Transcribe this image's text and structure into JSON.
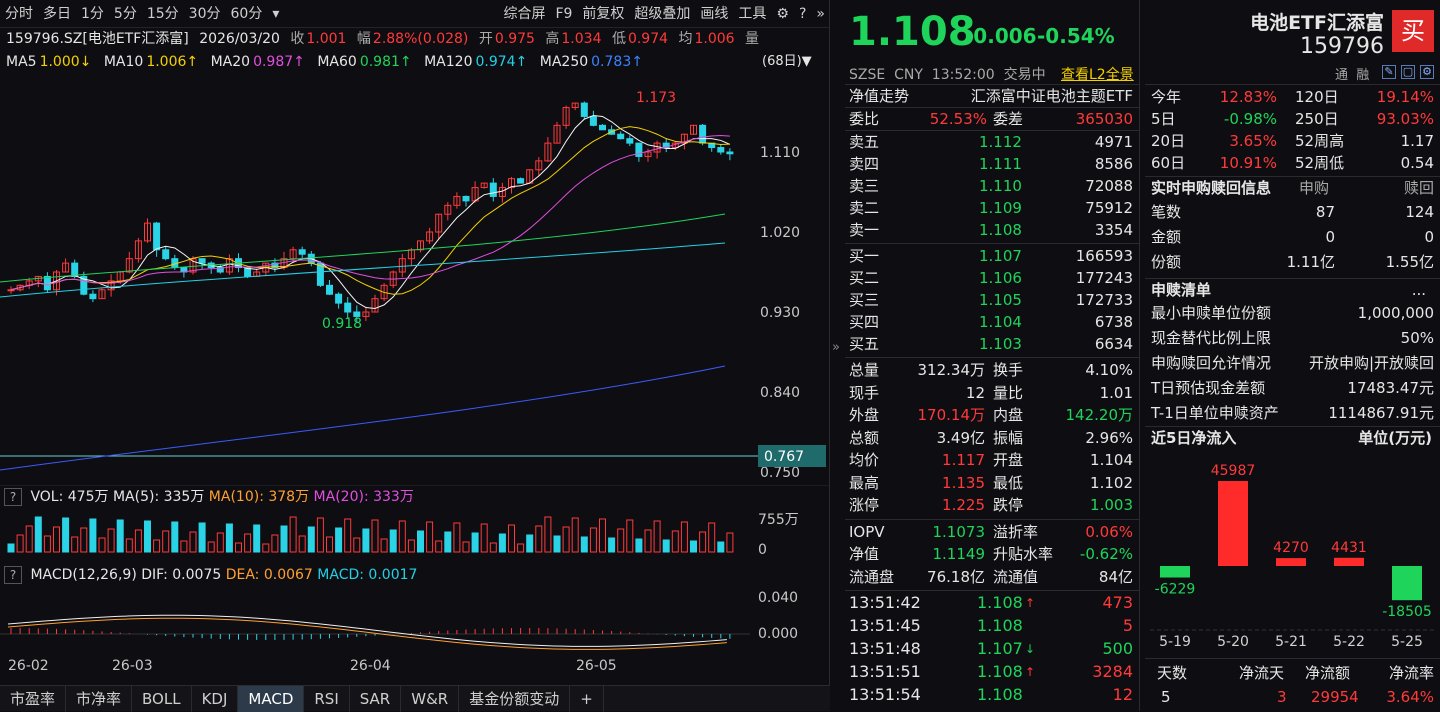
{
  "toolbar": {
    "tabs": [
      "分时",
      "多日",
      "1分",
      "5分",
      "15分",
      "30分",
      "60分",
      "▾"
    ],
    "right": [
      "综合屏",
      "F9",
      "前复权",
      "超级叠加",
      "画线",
      "工具"
    ]
  },
  "quote": {
    "code": "159796.SZ[电池ETF汇添富]",
    "date": "2026/03/20",
    "close_lbl": "收",
    "close": "1.001",
    "chg_lbl": "幅",
    "chg": "2.88%(0.028)",
    "open_lbl": "开",
    "open": "0.975",
    "high_lbl": "高",
    "high": "1.034",
    "low_lbl": "低",
    "low": "0.974",
    "avg_lbl": "均",
    "avg": "1.006",
    "vol_lbl": "量"
  },
  "ma": {
    "ma5": "MA5",
    "ma5v": "1.000↓",
    "ma10": "MA10",
    "ma10v": "1.006↑",
    "ma20": "MA20",
    "ma20v": "0.987↑",
    "ma60": "MA60",
    "ma60v": "0.981↑",
    "ma120": "MA120",
    "ma120v": "0.974↑",
    "ma250": "MA250",
    "ma250v": "0.783↑",
    "period": "(68日)▼"
  },
  "kchart": {
    "yticks": [
      "1.110",
      "1.020",
      "0.930",
      "0.840",
      "0.750"
    ],
    "hi_label": "1.173",
    "lo_label": "0.918",
    "price_tag": "0.767"
  },
  "vol": {
    "label": "VOL: 475万",
    "ma5": "MA(5): 335万",
    "ma10": "MA(10): 378万",
    "ma20": "MA(20): 333万",
    "ymax": "755万",
    "y0": "0"
  },
  "macd": {
    "label": "MACD(12,26,9)",
    "dif": "DIF: 0.0075",
    "dea": "DEA: 0.0067",
    "macd": "MACD: 0.0017",
    "y1": "0.040",
    "y0": "0.000"
  },
  "dates": [
    "26-02",
    "26-03",
    "26-04",
    "26-05"
  ],
  "bottom_tabs": [
    "市盈率",
    "市净率",
    "BOLL",
    "KDJ",
    "MACD",
    "RSI",
    "SAR",
    "W&R",
    "基金份额变动",
    "+"
  ],
  "mid": {
    "price": "1.108",
    "chg": "-0.006",
    "pct": "-0.54%",
    "market": "SZSE  CNY  13:52:00  交易中",
    "l2": "查看L2全景",
    "nav_lbl": "净值走势",
    "nav_name": "汇添富中证电池主题ETF",
    "wb_lbl": "委比",
    "wb": "52.53%",
    "wc_lbl": "委差",
    "wc": "365030",
    "asks": [
      {
        "l": "卖五",
        "p": "1.112",
        "v": "4971"
      },
      {
        "l": "卖四",
        "p": "1.111",
        "v": "8586"
      },
      {
        "l": "卖三",
        "p": "1.110",
        "v": "72088"
      },
      {
        "l": "卖二",
        "p": "1.109",
        "v": "75912"
      },
      {
        "l": "卖一",
        "p": "1.108",
        "v": "3354"
      }
    ],
    "bids": [
      {
        "l": "买一",
        "p": "1.107",
        "v": "166593"
      },
      {
        "l": "买二",
        "p": "1.106",
        "v": "177243"
      },
      {
        "l": "买三",
        "p": "1.105",
        "v": "172733"
      },
      {
        "l": "买四",
        "p": "1.104",
        "v": "6738"
      },
      {
        "l": "买五",
        "p": "1.103",
        "v": "6634"
      }
    ],
    "stats": [
      [
        "总量",
        "312.34万",
        "换手",
        "4.10%"
      ],
      [
        "现手",
        "12",
        "量比",
        "1.01"
      ],
      [
        "外盘",
        "170.14万",
        "内盘",
        "142.20万"
      ],
      [
        "总额",
        "3.49亿",
        "振幅",
        "2.96%"
      ],
      [
        "均价",
        "1.117",
        "开盘",
        "1.104"
      ],
      [
        "最高",
        "1.135",
        "最低",
        "1.102"
      ],
      [
        "涨停",
        "1.225",
        "跌停",
        "1.003"
      ]
    ],
    "iopv": [
      [
        "IOPV",
        "1.1073",
        "溢折率",
        "0.06%"
      ],
      [
        "净值",
        "1.1149",
        "升贴水率",
        "-0.62%"
      ],
      [
        "流通盘",
        "76.18亿",
        "流通值",
        "84亿"
      ]
    ],
    "ticks": [
      {
        "t": "13:51:42",
        "p": "1.108",
        "a": "↑",
        "v": "473"
      },
      {
        "t": "13:51:45",
        "p": "1.108",
        "a": "",
        "v": "5"
      },
      {
        "t": "13:51:48",
        "p": "1.107",
        "a": "↓",
        "v": "500"
      },
      {
        "t": "13:51:51",
        "p": "1.108",
        "a": "↑",
        "v": "3284"
      },
      {
        "t": "13:51:54",
        "p": "1.108",
        "a": "",
        "v": "12"
      }
    ]
  },
  "right": {
    "name": "电池ETF汇添富",
    "code": "159796",
    "buy": "买",
    "flags": "通  融",
    "perf": [
      [
        "今年",
        "12.83%",
        "120日",
        "19.14%"
      ],
      [
        "5日",
        "-0.98%",
        "250日",
        "93.03%"
      ],
      [
        "20日",
        "3.65%",
        "52周高",
        "1.17"
      ],
      [
        "60日",
        "10.91%",
        "52周低",
        "0.54"
      ]
    ],
    "rt_title": "实时申购赎回信息",
    "rt_sub": "申购",
    "rt_red": "赎回",
    "rt": [
      [
        "笔数",
        "87",
        "124"
      ],
      [
        "金额",
        "0",
        "0"
      ],
      [
        "份额",
        "1.11亿",
        "1.55亿"
      ]
    ],
    "list_title": "申赎清单",
    "list_more": "...",
    "list": [
      [
        "最小申赎单位份额",
        "1,000,000"
      ],
      [
        "现金替代比例上限",
        "50%"
      ],
      [
        "申购赎回允许情况",
        "开放申购|开放赎回"
      ],
      [
        "T日预估现金差额",
        "17483.47元"
      ],
      [
        "T-1日单位申赎资产",
        "1114867.91元"
      ]
    ],
    "flow_title": "近5日净流入",
    "flow_unit": "单位(万元)",
    "flow": {
      "dates": [
        "5-19",
        "5-20",
        "5-21",
        "5-22",
        "5-25"
      ],
      "values": [
        -6229,
        45987,
        4270,
        4431,
        -18505
      ],
      "labels": [
        "-6229",
        "45987",
        "4270",
        "4431",
        "-18505"
      ]
    },
    "sum_hdr": [
      "天数",
      "净流天",
      "净流额",
      "净流率"
    ],
    "sum": [
      "5",
      "3",
      "29954",
      "3.64%"
    ]
  }
}
